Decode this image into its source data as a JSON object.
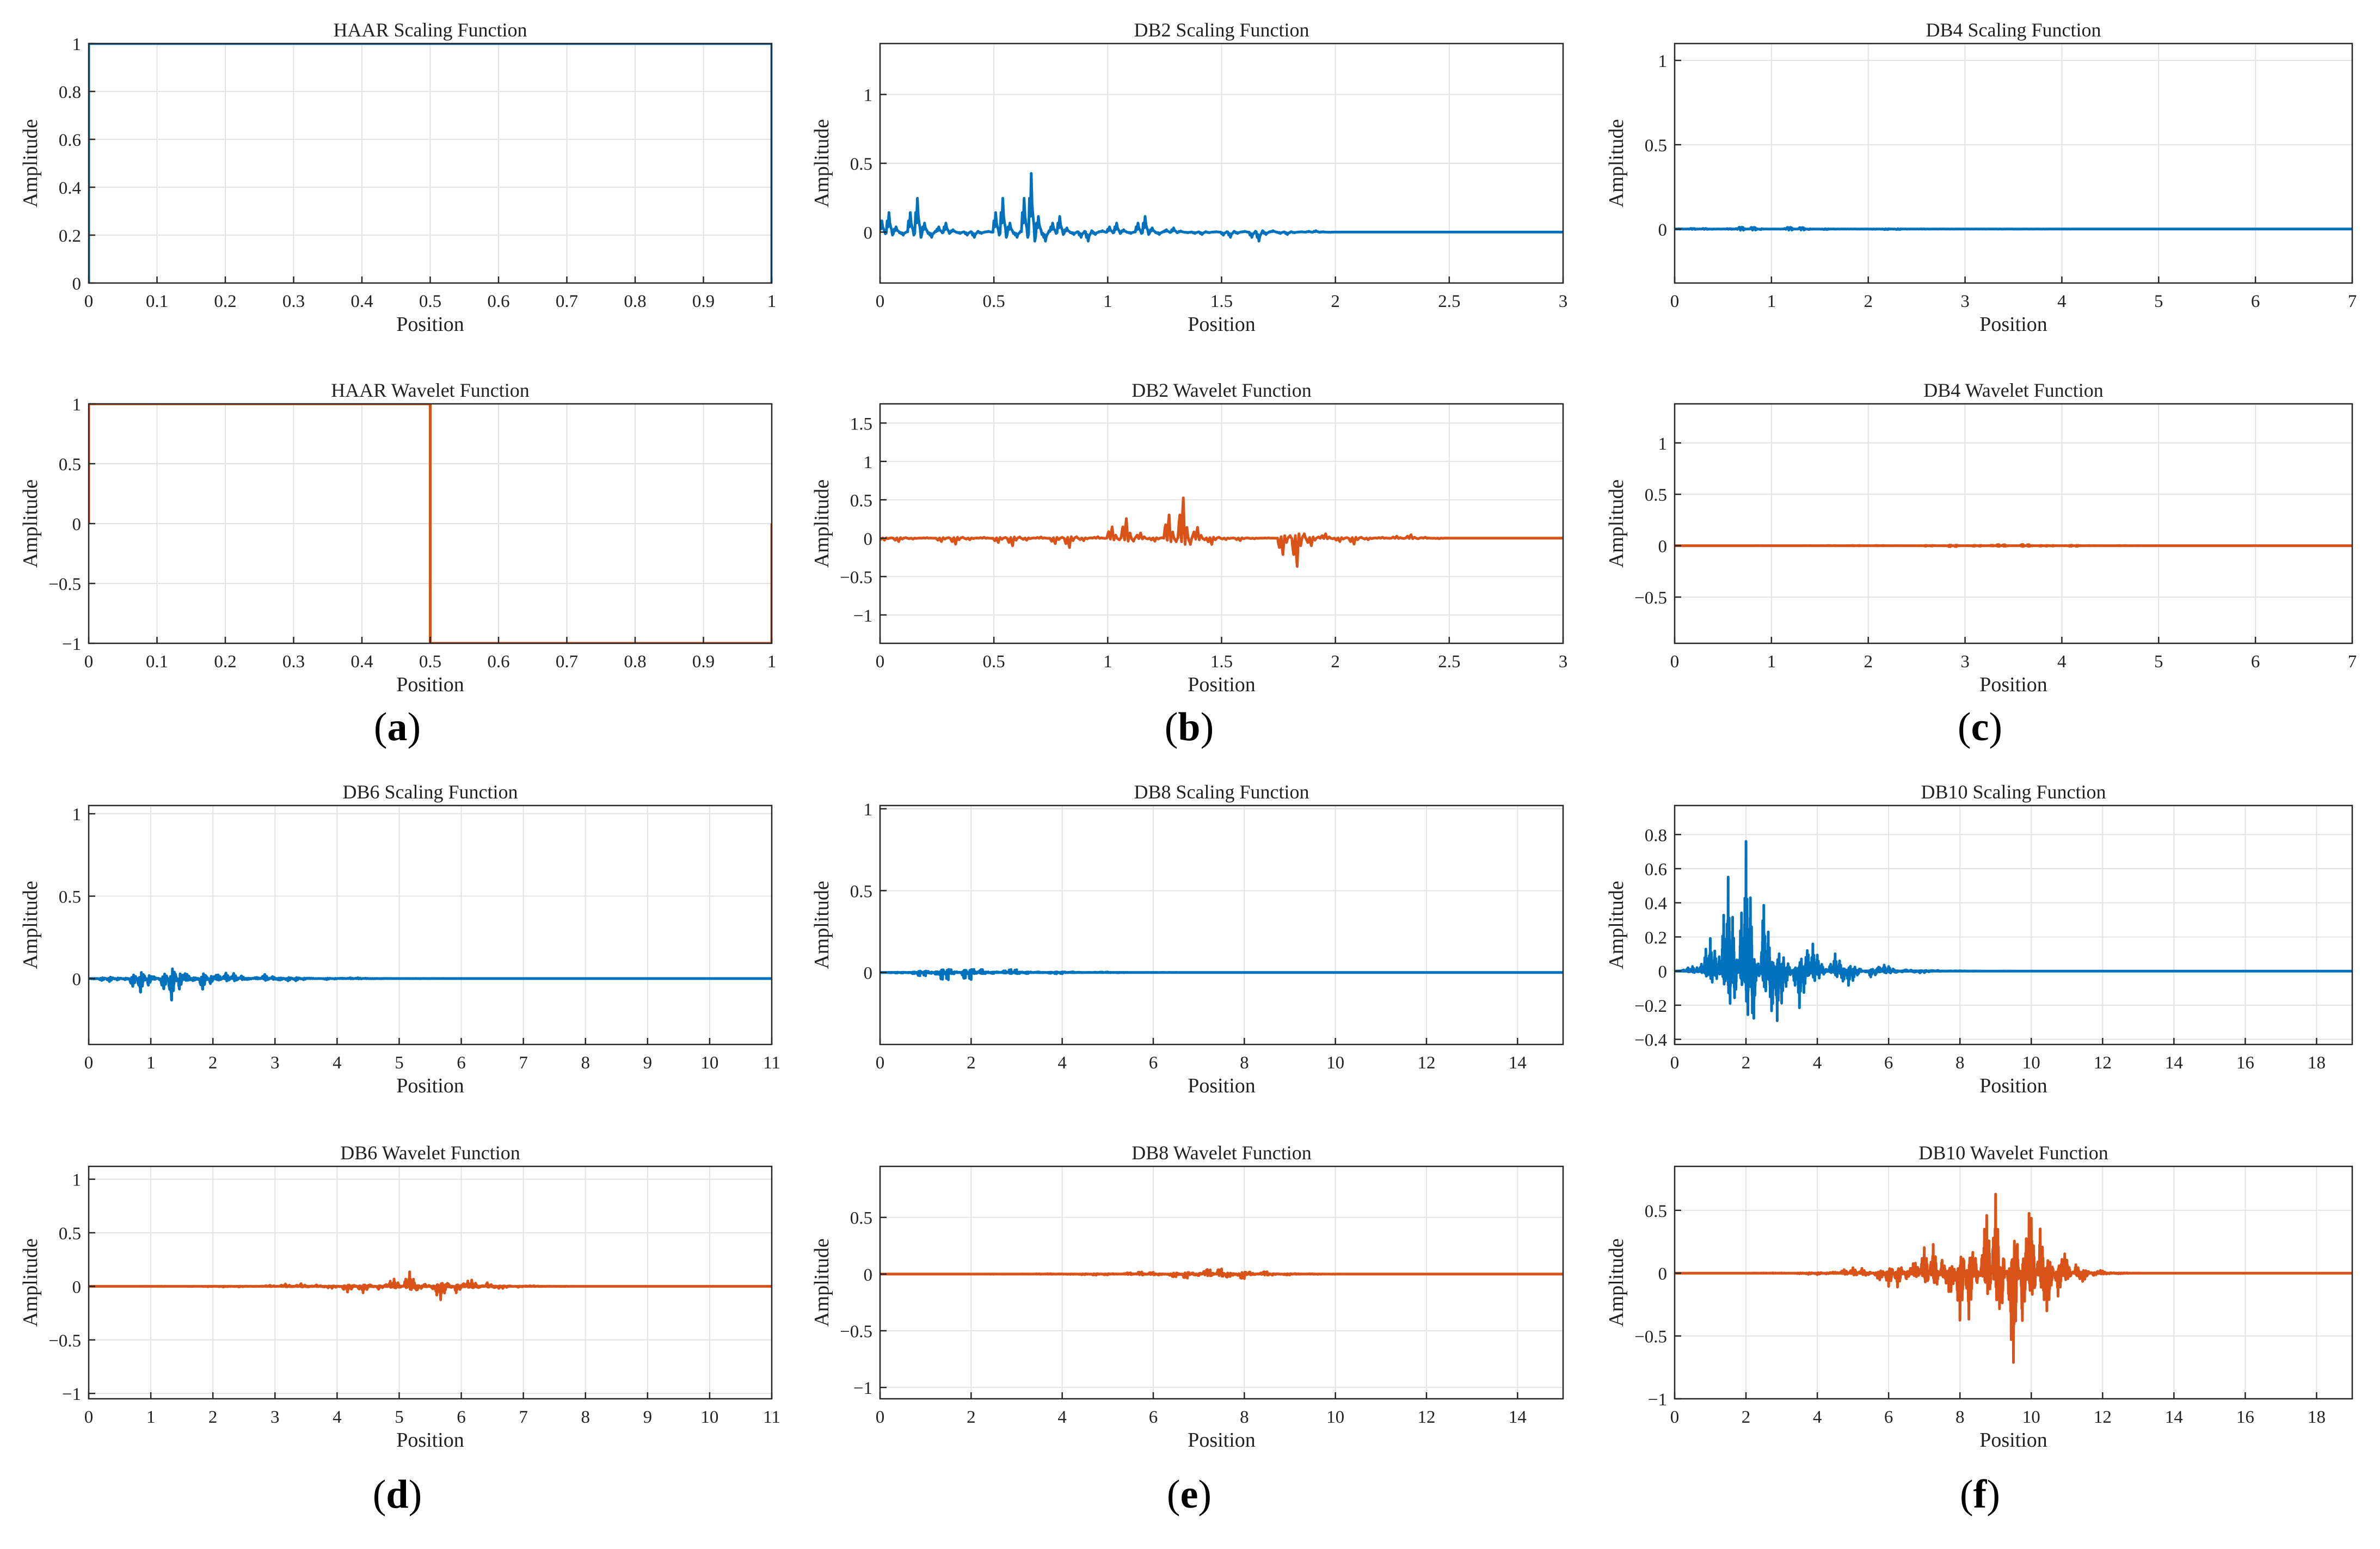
{
  "figure": {
    "panel_labels": [
      {
        "id": "a",
        "open": "(",
        "letter": "a",
        "close": ")"
      },
      {
        "id": "b",
        "open": "(",
        "letter": "b",
        "close": ")"
      },
      {
        "id": "c",
        "open": "(",
        "letter": "c",
        "close": ")"
      },
      {
        "id": "d",
        "open": "(",
        "letter": "d",
        "close": ")"
      },
      {
        "id": "e",
        "open": "(",
        "letter": "e",
        "close": ")"
      },
      {
        "id": "f",
        "open": "(",
        "letter": "f",
        "close": ")"
      }
    ],
    "colors": {
      "scaling": "#0072BD",
      "wavelet": "#D95319",
      "grid": "#e3e3e3",
      "axis": "#262626"
    }
  },
  "chart_data": [
    {
      "id": "haar-s",
      "type": "line",
      "title": "HAAR Scaling Function",
      "xlabel": "Position",
      "ylabel": "Amplitude",
      "kind": "haar_s",
      "color": "#0072BD",
      "xlim": [
        0,
        1
      ],
      "ylim": [
        0,
        1
      ],
      "xticks": [
        0,
        0.1,
        0.2,
        0.3,
        0.4,
        0.5,
        0.6,
        0.7,
        0.8,
        0.9,
        1
      ],
      "yticks": [
        0,
        0.2,
        0.4,
        0.6,
        0.8,
        1
      ],
      "xtick_labels": [
        "0",
        "0.1",
        "0.2",
        "0.3",
        "0.4",
        "0.5",
        "0.6",
        "0.7",
        "0.8",
        "0.9",
        "1"
      ],
      "ytick_labels": [
        "0",
        "0.2",
        "0.4",
        "0.6",
        "0.8",
        "1"
      ]
    },
    {
      "id": "haar-w",
      "type": "line",
      "title": "HAAR Wavelet Function",
      "xlabel": "Position",
      "ylabel": "Amplitude",
      "kind": "haar_w",
      "color": "#D95319",
      "xlim": [
        0,
        1
      ],
      "ylim": [
        -1,
        1
      ],
      "xticks": [
        0,
        0.1,
        0.2,
        0.3,
        0.4,
        0.5,
        0.6,
        0.7,
        0.8,
        0.9,
        1
      ],
      "yticks": [
        -1,
        -0.5,
        0,
        0.5,
        1
      ],
      "xtick_labels": [
        "0",
        "0.1",
        "0.2",
        "0.3",
        "0.4",
        "0.5",
        "0.6",
        "0.7",
        "0.8",
        "0.9",
        "1"
      ],
      "ytick_labels": [
        "−1",
        "−0.5",
        "0",
        "0.5",
        "1"
      ]
    },
    {
      "id": "db2-s",
      "type": "line",
      "title": "DB2 Scaling Function",
      "xlabel": "Position",
      "ylabel": "Amplitude",
      "kind": "daub",
      "p": 2,
      "mode": "phi",
      "color": "#0072BD",
      "xlim": [
        0,
        3
      ],
      "ylim": [
        -0.37,
        1.37
      ],
      "xticks": [
        0,
        0.5,
        1,
        1.5,
        2,
        2.5,
        3
      ],
      "yticks": [
        0,
        0.5,
        1
      ],
      "xtick_labels": [
        "0",
        "0.5",
        "1",
        "1.5",
        "2",
        "2.5",
        "3"
      ],
      "ytick_labels": [
        "0",
        "0.5",
        "1"
      ]
    },
    {
      "id": "db2-w",
      "type": "line",
      "title": "DB2 Wavelet Function",
      "xlabel": "Position",
      "ylabel": "Amplitude",
      "kind": "daub",
      "p": 2,
      "mode": "psi",
      "color": "#D95319",
      "xlim": [
        0,
        3
      ],
      "ylim": [
        -1.37,
        1.75
      ],
      "xticks": [
        0,
        0.5,
        1,
        1.5,
        2,
        2.5,
        3
      ],
      "yticks": [
        -1,
        -0.5,
        0,
        0.5,
        1,
        1.5
      ],
      "xtick_labels": [
        "0",
        "0.5",
        "1",
        "1.5",
        "2",
        "2.5",
        "3"
      ],
      "ytick_labels": [
        "−1",
        "−0.5",
        "0",
        "0.5",
        "1",
        "1.5"
      ]
    },
    {
      "id": "db4-s",
      "type": "line",
      "title": "DB4 Scaling Function",
      "xlabel": "Position",
      "ylabel": "Amplitude",
      "kind": "daub",
      "p": 4,
      "mode": "phi",
      "color": "#0072BD",
      "xlim": [
        0,
        7
      ],
      "ylim": [
        -0.32,
        1.1
      ],
      "xticks": [
        0,
        1,
        2,
        3,
        4,
        5,
        6,
        7
      ],
      "yticks": [
        0,
        0.5,
        1
      ],
      "xtick_labels": [
        "0",
        "1",
        "2",
        "3",
        "4",
        "5",
        "6",
        "7"
      ],
      "ytick_labels": [
        "0",
        "0.5",
        "1"
      ]
    },
    {
      "id": "db4-w",
      "type": "line",
      "title": "DB4 Wavelet Function",
      "xlabel": "Position",
      "ylabel": "Amplitude",
      "kind": "daub",
      "p": 4,
      "mode": "psi",
      "color": "#D95319",
      "xlim": [
        0,
        7
      ],
      "ylim": [
        -0.95,
        1.38
      ],
      "xticks": [
        0,
        1,
        2,
        3,
        4,
        5,
        6,
        7
      ],
      "yticks": [
        -0.5,
        0,
        0.5,
        1
      ],
      "xtick_labels": [
        "0",
        "1",
        "2",
        "3",
        "4",
        "5",
        "6",
        "7"
      ],
      "ytick_labels": [
        "−0.5",
        "0",
        "0.5",
        "1"
      ]
    },
    {
      "id": "db6-s",
      "type": "line",
      "title": "DB6 Scaling Function",
      "xlabel": "Position",
      "ylabel": "Amplitude",
      "kind": "daub",
      "p": 6,
      "mode": "phi",
      "color": "#0072BD",
      "xlim": [
        0,
        11
      ],
      "ylim": [
        -0.4,
        1.05
      ],
      "xticks": [
        0,
        1,
        2,
        3,
        4,
        5,
        6,
        7,
        8,
        9,
        10,
        11
      ],
      "yticks": [
        0,
        0.5,
        1
      ],
      "xtick_labels": [
        "0",
        "1",
        "2",
        "3",
        "4",
        "5",
        "6",
        "7",
        "8",
        "9",
        "10",
        "11"
      ],
      "ytick_labels": [
        "0",
        "0.5",
        "1"
      ]
    },
    {
      "id": "db6-w",
      "type": "line",
      "title": "DB6 Wavelet Function",
      "xlabel": "Position",
      "ylabel": "Amplitude",
      "kind": "daub",
      "p": 6,
      "mode": "psi",
      "color": "#D95319",
      "xlim": [
        0,
        11
      ],
      "ylim": [
        -1.05,
        1.12
      ],
      "xticks": [
        0,
        1,
        2,
        3,
        4,
        5,
        6,
        7,
        8,
        9,
        10,
        11
      ],
      "yticks": [
        -1,
        -0.5,
        0,
        0.5,
        1
      ],
      "xtick_labels": [
        "0",
        "1",
        "2",
        "3",
        "4",
        "5",
        "6",
        "7",
        "8",
        "9",
        "10",
        "11"
      ],
      "ytick_labels": [
        "−1",
        "−0.5",
        "0",
        "0.5",
        "1"
      ]
    },
    {
      "id": "db8-s",
      "type": "line",
      "title": "DB8 Scaling Function",
      "xlabel": "Position",
      "ylabel": "Amplitude",
      "kind": "daub",
      "p": 8,
      "mode": "phi",
      "color": "#0072BD",
      "xlim": [
        0,
        15
      ],
      "ylim": [
        -0.44,
        1.02
      ],
      "xticks": [
        0,
        2,
        4,
        6,
        8,
        10,
        12,
        14
      ],
      "yticks": [
        0,
        0.5,
        1
      ],
      "xtick_labels": [
        "0",
        "2",
        "4",
        "6",
        "8",
        "10",
        "12",
        "14"
      ],
      "ytick_labels": [
        "0",
        "0.5",
        "1"
      ]
    },
    {
      "id": "db8-w",
      "type": "line",
      "title": "DB8 Wavelet Function",
      "xlabel": "Position",
      "ylabel": "Amplitude",
      "kind": "daub",
      "p": 8,
      "mode": "psi",
      "color": "#D95319",
      "xlim": [
        0,
        15
      ],
      "ylim": [
        -1.1,
        0.95
      ],
      "xticks": [
        0,
        2,
        4,
        6,
        8,
        10,
        12,
        14
      ],
      "yticks": [
        -1,
        -0.5,
        0,
        0.5
      ],
      "xtick_labels": [
        "0",
        "2",
        "4",
        "6",
        "8",
        "10",
        "12",
        "14"
      ],
      "ytick_labels": [
        "−1",
        "−0.5",
        "0",
        "0.5"
      ]
    },
    {
      "id": "db10-s",
      "type": "line",
      "title": "DB10 Scaling Function",
      "xlabel": "Position",
      "ylabel": "Amplitude",
      "kind": "daub",
      "p": 10,
      "mode": "phi",
      "color": "#0072BD",
      "xlim": [
        0,
        19
      ],
      "ylim": [
        -0.43,
        0.97
      ],
      "xticks": [
        0,
        2,
        4,
        6,
        8,
        10,
        12,
        14,
        16,
        18
      ],
      "yticks": [
        -0.4,
        -0.2,
        0,
        0.2,
        0.4,
        0.6,
        0.8
      ],
      "xtick_labels": [
        "0",
        "2",
        "4",
        "6",
        "8",
        "10",
        "12",
        "14",
        "16",
        "18"
      ],
      "ytick_labels": [
        "−0.4",
        "−0.2",
        "0",
        "0.2",
        "0.4",
        "0.6",
        "0.8"
      ]
    },
    {
      "id": "db10-w",
      "type": "line",
      "title": "DB10 Wavelet Function",
      "xlabel": "Position",
      "ylabel": "Amplitude",
      "kind": "daub",
      "p": 10,
      "mode": "psi",
      "color": "#D95319",
      "xlim": [
        0,
        19
      ],
      "ylim": [
        -1.0,
        0.85
      ],
      "xticks": [
        0,
        2,
        4,
        6,
        8,
        10,
        12,
        14,
        16,
        18
      ],
      "yticks": [
        -1,
        -0.5,
        0,
        0.5
      ],
      "xtick_labels": [
        "0",
        "2",
        "4",
        "6",
        "8",
        "10",
        "12",
        "14",
        "16",
        "18"
      ],
      "ytick_labels": [
        "−1",
        "−0.5",
        "0",
        "0.5"
      ]
    }
  ]
}
